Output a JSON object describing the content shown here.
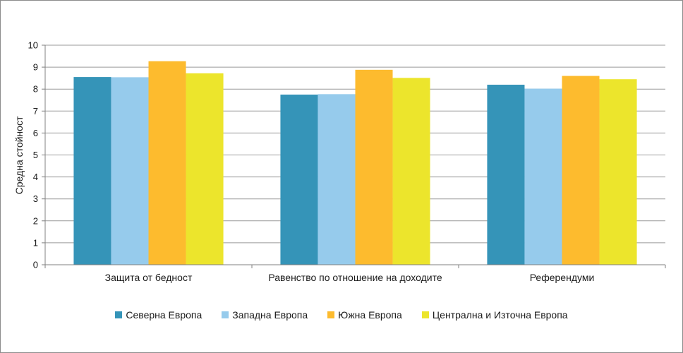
{
  "chart_data": {
    "type": "bar",
    "title": "",
    "xlabel": "",
    "ylabel": "Средна стойност",
    "ylim": [
      0,
      10
    ],
    "yticks": [
      0,
      1,
      2,
      3,
      4,
      5,
      6,
      7,
      8,
      9,
      10
    ],
    "grid": true,
    "legend_position": "bottom",
    "categories": [
      "Защита от бедност",
      "Равенство по отношение на доходите",
      "Референдуми"
    ],
    "series": [
      {
        "name": "Северна Европа",
        "color": "#3594b8",
        "values": [
          8.55,
          7.75,
          8.2
        ]
      },
      {
        "name": "Западна Европа",
        "color": "#96cbec",
        "values": [
          8.54,
          7.77,
          8.02
        ]
      },
      {
        "name": "Южна Европа",
        "color": "#fdbb2e",
        "values": [
          9.27,
          8.88,
          8.6
        ]
      },
      {
        "name": "Централна и Източна Европа",
        "color": "#ece52c",
        "values": [
          8.72,
          8.51,
          8.45
        ]
      }
    ]
  }
}
